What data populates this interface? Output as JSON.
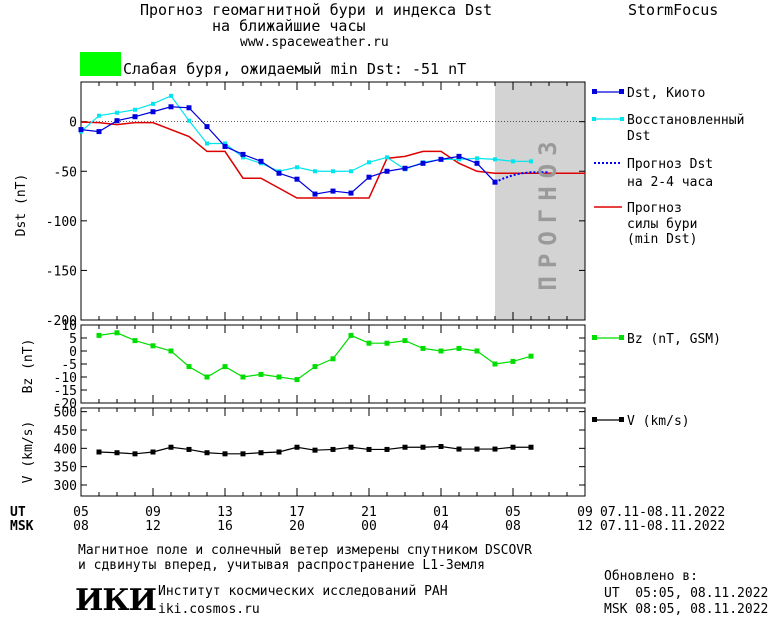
{
  "header": {
    "title_line1": "Прогноз геомагнитной бури и индекса Dst",
    "title_line2": "на ближайшие часы",
    "url": "www.spaceweather.ru",
    "brand": "StormFocus",
    "storm_color": "#00ff00",
    "storm_text": "Слабая буря, ожидаемый min Dst: -51 nT"
  },
  "legend": {
    "dst_kyoto": "Dst, Киото",
    "restored_1": "Восстановленный",
    "restored_2": "Dst",
    "forecast_1": "Прогноз Dst",
    "forecast_2": "на 2-4 часа",
    "storm_1": "Прогноз",
    "storm_2": "силы бури",
    "storm_3": "(min Dst)",
    "bz": "Bz (nT, GSM)",
    "v": "V (km/s)"
  },
  "forecast_label": "ПРОГНОЗ",
  "time_axis": {
    "ut_label": "UT",
    "msk_label": "MSK",
    "ut_ticks": [
      "05",
      "09",
      "13",
      "17",
      "21",
      "01",
      "05",
      "09"
    ],
    "msk_ticks": [
      "08",
      "12",
      "16",
      "20",
      "00",
      "04",
      "08",
      "12"
    ],
    "ut_range": "07.11-08.11.2022",
    "msk_range": "07.11-08.11.2022"
  },
  "footer": {
    "note_line1": "Магнитное поле и солнечный ветер измерены спутником DSCOVR",
    "note_line2": "и сдвинуты вперед, учитывая распространение L1-Земля",
    "logo_text": "ИКИ",
    "institute": "Институт космических исследований РАН",
    "site": "iki.cosmos.ru",
    "updated_label": "Обновлено в:",
    "updated_ut": "UT  05:05, 08.11.2022",
    "updated_msk": "MSK 08:05, 08.11.2022"
  },
  "chart_data": [
    {
      "type": "line",
      "ylabel": "Dst (nT)",
      "ylim": [
        -200,
        40
      ],
      "yticks": [
        0,
        -50,
        -100,
        -150,
        -200
      ],
      "xlim": [
        0,
        28
      ],
      "forecast_region": [
        23,
        28
      ],
      "colors": {
        "dst": "#0000dd",
        "restored": "#00e5ee",
        "forecast": "#0000ff",
        "storm": "#dd0000"
      },
      "series": [
        {
          "name": "Dst, Киото",
          "x": [
            0,
            1,
            2,
            3,
            4,
            5,
            6,
            7,
            8,
            9,
            10,
            11,
            12,
            13,
            14,
            15,
            16,
            17,
            18,
            19,
            20,
            21,
            22,
            23
          ],
          "values": [
            -8,
            -10,
            1,
            5,
            10,
            15,
            14,
            -5,
            -25,
            -33,
            -40,
            -52,
            -58,
            -73,
            -70,
            -72,
            -56,
            -50,
            -47,
            -42,
            -38,
            -35,
            -42,
            -61
          ]
        },
        {
          "name": "Восстановленный Dst",
          "x": [
            0,
            1,
            2,
            3,
            4,
            5,
            6,
            7,
            8,
            9,
            10,
            11,
            12,
            13,
            14,
            15,
            16,
            17,
            18,
            19,
            20,
            21,
            22,
            23,
            24,
            25
          ],
          "values": [
            -10,
            6,
            9,
            12,
            18,
            26,
            1,
            -22,
            -22,
            -36,
            -42,
            -50,
            -46,
            -50,
            -50,
            -50,
            -41,
            -36,
            -48,
            -41,
            -38,
            -38,
            -37,
            -38,
            -40,
            -40
          ]
        },
        {
          "name": "Прогноз Dst на 2-4 часа",
          "x": [
            23,
            23.5,
            24,
            24.5,
            25,
            25.5,
            26
          ],
          "values": [
            -61,
            -57,
            -54,
            -52,
            -51,
            -51,
            -51
          ]
        },
        {
          "name": "Прогноз силы бури (min Dst)",
          "x": [
            -1,
            1,
            2,
            3,
            4,
            6,
            7,
            8,
            9,
            10,
            11,
            12,
            13,
            14,
            15,
            16,
            17,
            18,
            19,
            20,
            21,
            22,
            23,
            28
          ],
          "values": [
            0,
            -1,
            -3,
            -1,
            -1,
            -15,
            -30,
            -30,
            -57,
            -57,
            -67,
            -77,
            -77,
            -77,
            -77,
            -77,
            -37,
            -35,
            -30,
            -30,
            -42,
            -50,
            -52,
            -52
          ]
        }
      ]
    },
    {
      "type": "line",
      "ylabel": "Bz (nT)",
      "ylim": [
        -20,
        10
      ],
      "yticks": [
        10,
        5,
        0,
        -5,
        -10,
        -15,
        -20
      ],
      "color": "#00dd00",
      "series": [
        {
          "name": "Bz (nT, GSM)",
          "x": [
            1,
            2,
            3,
            4,
            5,
            6,
            7,
            8,
            9,
            10,
            11,
            12,
            13,
            14,
            15,
            16,
            17,
            18,
            19,
            20,
            21,
            22,
            23,
            24,
            25
          ],
          "values": [
            6,
            7,
            4,
            2,
            0,
            -6,
            -10,
            -6,
            -10,
            -9,
            -10,
            -11,
            -6,
            -3,
            6,
            3,
            3,
            4,
            1,
            0,
            1,
            0,
            -5,
            -4,
            -2
          ]
        }
      ]
    },
    {
      "type": "line",
      "ylabel": "V (km/s)",
      "ylim": [
        270,
        510
      ],
      "yticks": [
        500,
        450,
        400,
        350,
        300
      ],
      "color": "#000000",
      "series": [
        {
          "name": "V (km/s)",
          "x": [
            1,
            2,
            3,
            4,
            5,
            6,
            7,
            8,
            9,
            10,
            11,
            12,
            13,
            14,
            15,
            16,
            17,
            18,
            19,
            20,
            21,
            22,
            23,
            24,
            25
          ],
          "values": [
            390,
            388,
            385,
            390,
            403,
            397,
            388,
            385,
            385,
            388,
            390,
            403,
            395,
            397,
            403,
            397,
            397,
            403,
            403,
            405,
            398,
            398,
            398,
            403,
            403
          ]
        }
      ]
    }
  ]
}
